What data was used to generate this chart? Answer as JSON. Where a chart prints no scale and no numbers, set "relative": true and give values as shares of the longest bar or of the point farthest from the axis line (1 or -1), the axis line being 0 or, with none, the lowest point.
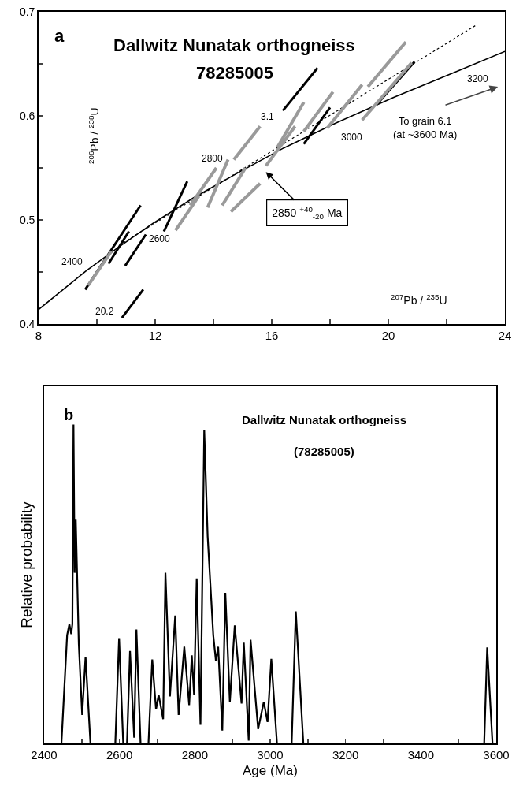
{
  "chart_data": [
    {
      "type": "line",
      "title": "Dallwitz Nunatak orthogneiss",
      "subtitle": "78285005",
      "xlabel": "$^{207}$Pb / $^{235}$U",
      "ylabel": "$^{206}$Pb / $^{238}$U",
      "xlim": [
        8,
        24
      ],
      "xticks": [
        8,
        {
          "value": 10,
          "label": null
        },
        12,
        {
          "value": 14,
          "label": null
        },
        16,
        {
          "value": 18,
          "label": null
        },
        20,
        {
          "value": 22,
          "label": null
        },
        24
      ],
      "ylim": [
        0.4,
        0.7
      ],
      "yticks": [
        0.4,
        {
          "value": 0.45,
          "label": null
        },
        0.5,
        {
          "value": 0.55,
          "label": null
        },
        0.6,
        {
          "value": 0.65,
          "label": null
        },
        0.7
      ],
      "grid": false,
      "legend": false,
      "marker": "none",
      "series": [
        {
          "color": "#000000",
          "line_style": "solid",
          "x": [
            8,
            9.63,
            10.75,
            11.94,
            13.3,
            14.76,
            16.4,
            18.19,
            20.2,
            22.37,
            24
          ],
          "values": [
            0.414,
            0.451,
            0.474,
            0.497,
            0.521,
            0.544,
            0.569,
            0.593,
            0.618,
            0.643,
            0.662
          ]
        },
        {
          "color": "#000000",
          "line_style": "dotted",
          "x": [
            10.9,
            23.0
          ],
          "values": [
            0.478,
            0.687
          ]
        },
        {
          "color": "#000000",
          "line_style": "solid",
          "x": [
            10.86,
            11.59,
            null,
            10.97,
            11.68,
            null,
            16.38,
            17.57,
            null,
            9.6,
            11.5,
            null,
            12.3,
            13.1,
            null,
            10.4,
            11.1,
            null,
            19.6,
            20.9,
            null,
            17.1,
            18.0
          ],
          "values": [
            0.406,
            0.433,
            null,
            0.456,
            0.486,
            null,
            0.605,
            0.646,
            null,
            0.433,
            0.514,
            null,
            0.489,
            0.537,
            null,
            0.458,
            0.489,
            null,
            0.611,
            0.652,
            null,
            0.573,
            0.608
          ]
        },
        {
          "color": "#9a9a9a",
          "line_style": "solid",
          "x": [
            9.7,
            10.5,
            null,
            12.7,
            13.5,
            null,
            13.2,
            14.1,
            null,
            13.8,
            14.5,
            null,
            14.3,
            15.1,
            null,
            14.6,
            15.6,
            null,
            14.7,
            15.6,
            null,
            15.8,
            16.8,
            null,
            16.2,
            17.1,
            null,
            17.1,
            18.1,
            null,
            17.9,
            19.1,
            null,
            19.3,
            20.6,
            null,
            19.1,
            20.8
          ],
          "values": [
            0.437,
            0.47,
            null,
            0.49,
            0.523,
            null,
            0.514,
            0.55,
            null,
            0.512,
            0.558,
            null,
            0.514,
            0.55,
            null,
            0.508,
            0.535,
            null,
            0.558,
            0.59,
            null,
            0.552,
            0.59,
            null,
            0.57,
            0.613,
            null,
            0.585,
            0.623,
            null,
            0.588,
            0.63,
            null,
            0.628,
            0.671,
            null,
            0.596,
            0.651
          ]
        }
      ],
      "annotations": [
        "a",
        {
          "text": "2400",
          "x": 9.63,
          "y": 0.451
        },
        {
          "text": "2600",
          "x": 11.94,
          "y": 0.497
        },
        {
          "text": "2800",
          "x": 14.76,
          "y": 0.544
        },
        {
          "text": "3000",
          "x": 18.19,
          "y": 0.593
        },
        {
          "text": "3200",
          "x": 22.37,
          "y": 0.643
        },
        {
          "text": "3.1",
          "x": 16.38,
          "y": 0.605
        },
        {
          "text": "20.2",
          "x": 10.86,
          "y": 0.406
        },
        "2850 $^{+40}$$_{-20}$ Ma",
        "To grain 6.1\n(at ~3600 Ma)"
      ]
    },
    {
      "type": "line",
      "title": "Dallwitz Nunatak orthogneiss",
      "subtitle": "(78285005)",
      "xlabel": "Age (Ma)",
      "ylabel": "Relative probability",
      "relative": true,
      "xlim": [
        2400,
        3600
      ],
      "xticks": [
        2400,
        {
          "value": 2500,
          "label": null
        },
        2600,
        {
          "value": 2700,
          "label": null
        },
        2800,
        {
          "value": 2900,
          "label": null
        },
        3000,
        {
          "value": 3100,
          "label": null
        },
        3200,
        {
          "value": 3300,
          "label": null
        },
        3400,
        {
          "value": 3500,
          "label": null
        },
        3600
      ],
      "grid": false,
      "legend": false,
      "marker": "none",
      "line_style": "solid",
      "series": [
        {
          "color": "#000000",
          "x": [
            2400,
            2446,
            2461,
            2467,
            2472,
            2475,
            2478,
            2481,
            2484,
            2492,
            2501,
            2510,
            2523,
            2589,
            2599,
            2610,
            2620,
            2628,
            2639,
            2645,
            2656,
            2677,
            2687,
            2697,
            2704,
            2716,
            2722,
            2734,
            2748,
            2757,
            2772,
            2785,
            2792,
            2798,
            2805,
            2815,
            2825,
            2834,
            2849,
            2856,
            2862,
            2873,
            2881,
            2893,
            2906,
            2924,
            2930,
            2943,
            2948,
            2968,
            2983,
            2993,
            3003,
            3018,
            3057,
            3068,
            3088,
            3568,
            3576,
            3590,
            3600
          ],
          "values": [
            0,
            0,
            0.339,
            0.374,
            0.343,
            0.374,
            1,
            0.535,
            0.704,
            0.312,
            0.089,
            0.272,
            0,
            0,
            0.33,
            0,
            0,
            0.29,
            0.018,
            0.357,
            0,
            0,
            0.263,
            0.107,
            0.152,
            0.076,
            0.535,
            0.147,
            0.401,
            0.089,
            0.303,
            0.12,
            0.276,
            0.152,
            0.517,
            0.058,
            0.982,
            0.651,
            0.339,
            0.258,
            0.303,
            0.04,
            0.472,
            0.129,
            0.37,
            0.125,
            0.316,
            0.009,
            0.325,
            0.045,
            0.13,
            0.067,
            0.265,
            0,
            0,
            0.414,
            0,
            0,
            0.301,
            0,
            0
          ]
        }
      ],
      "annotations": [
        "b"
      ]
    }
  ]
}
